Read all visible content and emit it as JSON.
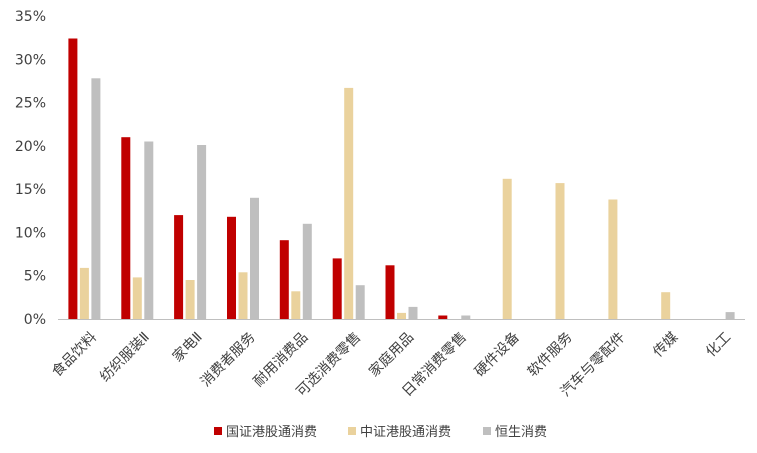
{
  "chart_data": {
    "type": "bar",
    "categories": [
      "食品饮料",
      "纺织服装Ⅱ",
      "家电Ⅱ",
      "消费者服务",
      "耐用消费品",
      "可选消费零售",
      "家庭用品",
      "日常消费零售",
      "硬件设备",
      "软件服务",
      "汽车与零配件",
      "传媒",
      "化工"
    ],
    "series": [
      {
        "name": "国证港股通消费",
        "color": "#C00000",
        "values": [
          32.4,
          21.0,
          12.0,
          11.8,
          9.1,
          7.0,
          6.2,
          0.4,
          null,
          null,
          null,
          null,
          null
        ]
      },
      {
        "name": "中证港股通消费",
        "color": "#EAD29D",
        "values": [
          5.9,
          4.8,
          4.5,
          5.4,
          3.2,
          26.7,
          0.7,
          null,
          16.2,
          15.7,
          13.8,
          3.1,
          null
        ]
      },
      {
        "name": "恒生消费",
        "color": "#BFBFBF",
        "values": [
          27.8,
          20.5,
          20.1,
          14.0,
          11.0,
          3.9,
          1.4,
          0.4,
          null,
          null,
          null,
          null,
          0.8
        ]
      }
    ],
    "yticks": [
      "0%",
      "5%",
      "10%",
      "15%",
      "20%",
      "25%",
      "30%",
      "35%"
    ],
    "ylim": [
      0,
      35
    ],
    "legend": "bottom",
    "grid": false
  }
}
